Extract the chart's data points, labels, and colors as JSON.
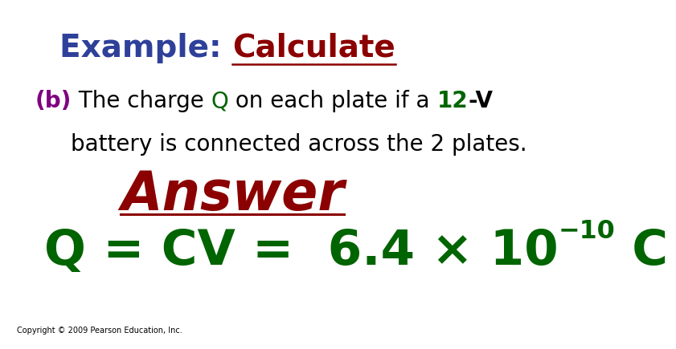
{
  "background_color": "#ffffff",
  "title_example": "Example: ",
  "title_calculate": "Calculate",
  "title_example_color": "#2e4099",
  "title_calculate_color": "#8b0000",
  "title_fontsize": 28,
  "b_color": "#800080",
  "body_color": "#000000",
  "Q_color": "#006400",
  "line2": "battery is connected across the 2 plates.",
  "line2_color": "#000000",
  "answer_text": "Answer",
  "answer_color": "#8b0000",
  "answer_fontsize": 48,
  "equation_color": "#006400",
  "equation_fontsize": 44,
  "body_fontsize": 20,
  "copyright": "Copyright © 2009 Pearson Education, Inc.",
  "copyright_color": "#000000",
  "copyright_fontsize": 7
}
